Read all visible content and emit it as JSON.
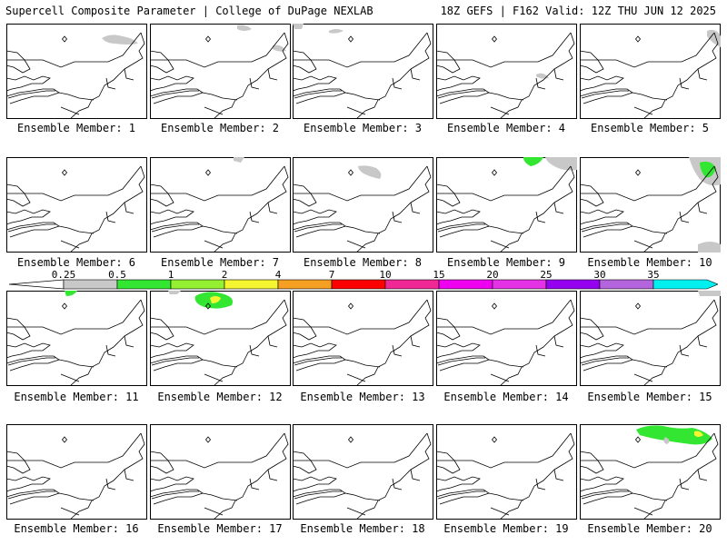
{
  "header": {
    "title_left": "Supercell Composite Parameter | College of DuPage NEXLAB",
    "title_right": "18Z GEFS | F162 Valid: 12Z THU JUN 12 2025"
  },
  "panel_prefix": "Ensemble Member: ",
  "members": [
    1,
    2,
    3,
    4,
    5,
    6,
    7,
    8,
    9,
    10,
    11,
    12,
    13,
    14,
    15,
    16,
    17,
    18,
    19,
    20
  ],
  "colorbar": {
    "ticks": [
      "0.25",
      "0.5",
      "1",
      "2",
      "4",
      "7",
      "10",
      "15",
      "20",
      "25",
      "30",
      "35"
    ],
    "colors": [
      "#c8c8c8",
      "#32e632",
      "#96f032",
      "#f5f532",
      "#f5a023",
      "#ff0000",
      "#f02896",
      "#f000f0",
      "#e632e6",
      "#9600f0",
      "#b464dc",
      "#00f0f0"
    ]
  }
}
